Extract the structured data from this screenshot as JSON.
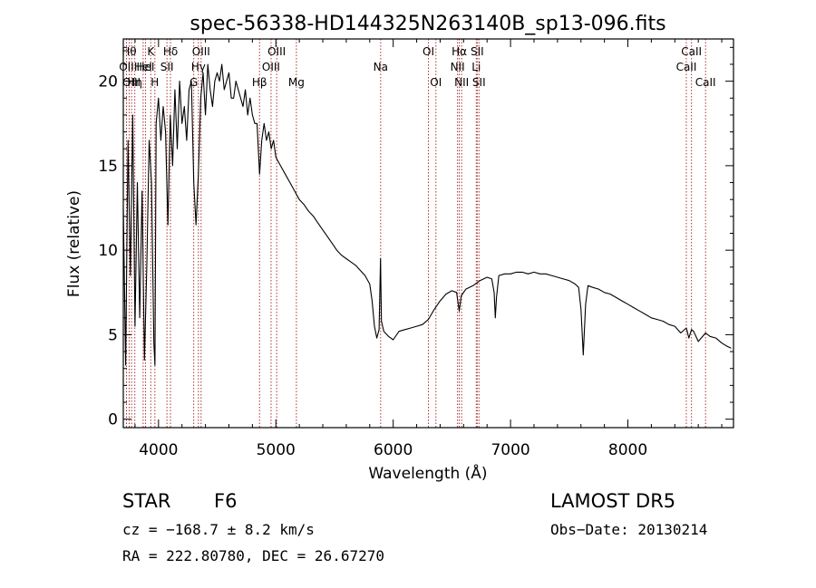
{
  "chart_data": {
    "type": "line",
    "title": "spec-56338-HD144325N263140B_sp13-096.fits",
    "xlabel": "Wavelength (Å)",
    "ylabel": "Flux (relative)",
    "xlim": [
      3700,
      8900
    ],
    "ylim": [
      -0.5,
      22.5
    ],
    "xticks": [
      4000,
      5000,
      6000,
      7000,
      8000
    ],
    "yticks": [
      0,
      5,
      10,
      15,
      20
    ],
    "series": [
      {
        "x": [
          3700,
          3720,
          3740,
          3760,
          3780,
          3800,
          3820,
          3840,
          3860,
          3880,
          3900,
          3920,
          3940,
          3960,
          3970,
          3980,
          4000,
          4020,
          4040,
          4060,
          4080,
          4100,
          4120,
          4140,
          4160,
          4180,
          4200,
          4220,
          4240,
          4260,
          4280,
          4300,
          4320,
          4340,
          4360,
          4380,
          4400,
          4420,
          4440,
          4460,
          4480,
          4500,
          4520,
          4540,
          4560,
          4580,
          4600,
          4620,
          4640,
          4660,
          4680,
          4700,
          4720,
          4740,
          4760,
          4780,
          4800,
          4820,
          4840,
          4861,
          4880,
          4900,
          4920,
          4940,
          4960,
          4980,
          5000,
          5040,
          5080,
          5120,
          5160,
          5200,
          5240,
          5280,
          5320,
          5360,
          5400,
          5440,
          5480,
          5520,
          5560,
          5600,
          5640,
          5680,
          5720,
          5760,
          5800,
          5820,
          5840,
          5860,
          5880,
          5892,
          5900,
          5920,
          5960,
          6000,
          6050,
          6100,
          6150,
          6200,
          6250,
          6300,
          6350,
          6400,
          6450,
          6500,
          6540,
          6563,
          6580,
          6620,
          6680,
          6740,
          6800,
          6840,
          6860,
          6870,
          6880,
          6900,
          6950,
          7000,
          7050,
          7100,
          7150,
          7200,
          7250,
          7300,
          7350,
          7400,
          7450,
          7500,
          7550,
          7580,
          7600,
          7620,
          7640,
          7660,
          7700,
          7750,
          7800,
          7850,
          7900,
          7950,
          8000,
          8050,
          8100,
          8150,
          8200,
          8250,
          8300,
          8350,
          8400,
          8450,
          8498,
          8520,
          8542,
          8560,
          8600,
          8662,
          8700,
          8750,
          8800,
          8850,
          8880
        ],
        "values": [
          12.5,
          3.2,
          16.5,
          8.5,
          18.0,
          5.5,
          14.0,
          6.0,
          13.5,
          3.5,
          9.0,
          16.5,
          14.0,
          4.5,
          3.2,
          17.5,
          19.0,
          16.5,
          18.5,
          17.0,
          11.5,
          18.0,
          15.0,
          19.5,
          16.0,
          20.0,
          17.5,
          18.5,
          16.5,
          19.5,
          20.0,
          14.0,
          11.5,
          14.5,
          19.0,
          20.5,
          18.0,
          21.0,
          19.5,
          18.5,
          20.0,
          20.5,
          20.0,
          21.0,
          19.5,
          20.0,
          20.5,
          19.0,
          19.0,
          20.0,
          19.5,
          19.0,
          18.5,
          19.5,
          18.0,
          19.0,
          18.0,
          17.5,
          17.5,
          14.5,
          16.5,
          17.5,
          16.5,
          17.0,
          16.0,
          16.5,
          15.5,
          15.0,
          14.5,
          14.0,
          13.5,
          13.0,
          12.7,
          12.3,
          12.0,
          11.6,
          11.2,
          10.8,
          10.4,
          10.0,
          9.7,
          9.5,
          9.3,
          9.1,
          8.8,
          8.5,
          8.0,
          7.0,
          5.5,
          4.8,
          5.3,
          9.5,
          5.8,
          5.2,
          4.9,
          4.7,
          5.2,
          5.3,
          5.4,
          5.5,
          5.6,
          5.9,
          6.5,
          7.0,
          7.4,
          7.6,
          7.5,
          6.4,
          7.3,
          7.7,
          7.9,
          8.2,
          8.4,
          8.3,
          7.5,
          6.0,
          7.2,
          8.5,
          8.6,
          8.6,
          8.7,
          8.7,
          8.6,
          8.7,
          8.6,
          8.6,
          8.5,
          8.4,
          8.3,
          8.2,
          8.0,
          7.8,
          6.5,
          3.8,
          6.8,
          7.9,
          7.8,
          7.7,
          7.5,
          7.4,
          7.2,
          7.0,
          6.8,
          6.6,
          6.4,
          6.2,
          6.0,
          5.9,
          5.8,
          5.6,
          5.5,
          5.1,
          5.4,
          4.8,
          5.3,
          5.2,
          4.6,
          5.1,
          4.9,
          4.8,
          4.5,
          4.3,
          4.2
        ]
      }
    ],
    "spectral_lines": [
      {
        "wl": 3727,
        "label": "OII",
        "row": 2
      },
      {
        "wl": 3750,
        "label": "Hθ",
        "row": 1
      },
      {
        "wl": 3770,
        "label": "OIII",
        "row": 3
      },
      {
        "wl": 3798,
        "label": "Hη",
        "row": 3
      },
      {
        "wl": 3869,
        "label": "HeI",
        "row": 2
      },
      {
        "wl": 3889,
        "label": "HeI",
        "row": 2
      },
      {
        "wl": 3934,
        "label": "K",
        "row": 1
      },
      {
        "wl": 3969,
        "label": "H",
        "row": 3
      },
      {
        "wl": 4072,
        "label": "SII",
        "row": 2
      },
      {
        "wl": 4102,
        "label": "Hδ",
        "row": 1
      },
      {
        "wl": 4300,
        "label": "G",
        "row": 3
      },
      {
        "wl": 4340,
        "label": "Hγ",
        "row": 2
      },
      {
        "wl": 4363,
        "label": "OIII",
        "row": 1
      },
      {
        "wl": 4861,
        "label": "Hβ",
        "row": 3
      },
      {
        "wl": 4959,
        "label": "OIII",
        "row": 2
      },
      {
        "wl": 5007,
        "label": "OIII",
        "row": 1
      },
      {
        "wl": 5175,
        "label": "Mg",
        "row": 3
      },
      {
        "wl": 5893,
        "label": "Na",
        "row": 2
      },
      {
        "wl": 6300,
        "label": "OI",
        "row": 1
      },
      {
        "wl": 6364,
        "label": "OI",
        "row": 3
      },
      {
        "wl": 6548,
        "label": "NII",
        "row": 2
      },
      {
        "wl": 6563,
        "label": "Hα",
        "row": 1
      },
      {
        "wl": 6583,
        "label": "NII",
        "row": 3
      },
      {
        "wl": 6708,
        "label": "Li",
        "row": 2
      },
      {
        "wl": 6716,
        "label": "SII",
        "row": 1
      },
      {
        "wl": 6731,
        "label": "SII",
        "row": 3
      },
      {
        "wl": 8498,
        "label": "CaII",
        "row": 2
      },
      {
        "wl": 8542,
        "label": "CaII",
        "row": 1
      },
      {
        "wl": 8662,
        "label": "CaII",
        "row": 3
      }
    ]
  },
  "info": {
    "class_label": "STAR",
    "subclass_label": "F6",
    "survey_label": "LAMOST DR5",
    "cz_text": "cz = −168.7 ± 8.2 km/s",
    "obs_date_text": "Obs−Date: 20130214",
    "coords_text": "RA = 222.80780, DEC =  26.67270"
  }
}
